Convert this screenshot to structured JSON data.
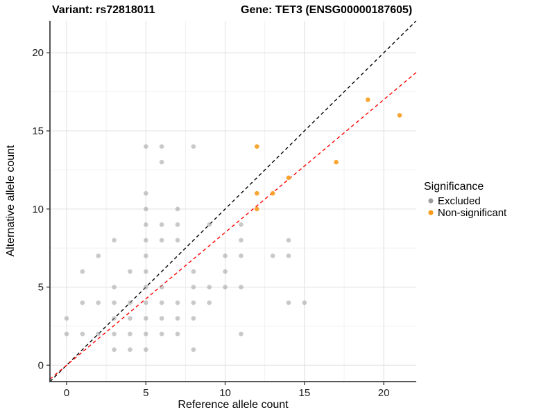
{
  "figure": {
    "title_left": "Variant: rs72818011",
    "title_right": "Gene: TET3 (ENSG00000187605)"
  },
  "axes": {
    "x": {
      "label": "Reference allele count",
      "major_ticks": [
        0,
        5,
        10,
        15,
        20
      ],
      "minor_ticks": [
        2.5,
        7.5,
        12.5,
        17.5
      ],
      "domain": [
        -1.05,
        22.05
      ]
    },
    "y": {
      "label": "Alternative allele count",
      "major_ticks": [
        0,
        5,
        10,
        15,
        20
      ],
      "minor_ticks": [
        2.5,
        7.5,
        12.5,
        17.5
      ],
      "domain": [
        -1.05,
        22.05
      ]
    }
  },
  "legend": {
    "title": "Significance",
    "items": [
      {
        "label": "Excluded",
        "color": "#9c9c9c"
      },
      {
        "label": "Non-significant",
        "color": "#F89C1C"
      }
    ]
  },
  "style": {
    "grid_major": "#e2e2e2",
    "grid_minor": "#f0f0f0",
    "axis_line": "#3f3f3f",
    "panel_bg": "#ffffff"
  },
  "chart_data": {
    "type": "scatter",
    "title": "Variant: rs72818011 / Gene: TET3 (ENSG00000187605)",
    "xlabel": "Reference allele count",
    "ylabel": "Alternative allele count",
    "xlim": [
      -1.05,
      22.05
    ],
    "ylim": [
      -1.05,
      22.05
    ],
    "grid": true,
    "legend_position": "right",
    "series": [
      {
        "name": "Excluded",
        "color": "#9c9c9c",
        "opacity": 0.55,
        "points": [
          [
            0,
            2
          ],
          [
            0,
            3
          ],
          [
            1,
            2
          ],
          [
            1,
            4
          ],
          [
            1,
            6
          ],
          [
            2,
            2
          ],
          [
            2,
            4
          ],
          [
            2,
            7
          ],
          [
            3,
            1
          ],
          [
            3,
            2
          ],
          [
            3,
            3
          ],
          [
            3,
            4
          ],
          [
            3,
            5
          ],
          [
            3,
            8
          ],
          [
            4,
            1
          ],
          [
            4,
            2
          ],
          [
            4,
            3
          ],
          [
            4,
            4
          ],
          [
            4,
            6
          ],
          [
            5,
            1
          ],
          [
            5,
            2
          ],
          [
            5,
            3
          ],
          [
            5,
            4
          ],
          [
            5,
            5
          ],
          [
            5,
            6
          ],
          [
            5,
            7
          ],
          [
            5,
            8
          ],
          [
            5,
            9
          ],
          [
            5,
            10
          ],
          [
            5,
            11
          ],
          [
            5,
            14
          ],
          [
            6,
            2
          ],
          [
            6,
            3
          ],
          [
            6,
            4
          ],
          [
            6,
            5
          ],
          [
            6,
            8
          ],
          [
            6,
            9
          ],
          [
            6,
            13
          ],
          [
            6,
            14
          ],
          [
            7,
            2
          ],
          [
            7,
            3
          ],
          [
            7,
            4
          ],
          [
            7,
            8
          ],
          [
            7,
            9
          ],
          [
            7,
            10
          ],
          [
            8,
            1
          ],
          [
            8,
            3
          ],
          [
            8,
            4
          ],
          [
            8,
            5
          ],
          [
            8,
            6
          ],
          [
            8,
            14
          ],
          [
            9,
            4
          ],
          [
            9,
            5
          ],
          [
            9,
            9
          ],
          [
            10,
            5
          ],
          [
            10,
            6
          ],
          [
            10,
            7
          ],
          [
            11,
            2
          ],
          [
            11,
            5
          ],
          [
            11,
            7
          ],
          [
            11,
            8
          ],
          [
            11,
            9
          ],
          [
            13,
            7
          ],
          [
            14,
            4
          ],
          [
            14,
            7
          ],
          [
            14,
            8
          ],
          [
            15,
            4
          ]
        ]
      },
      {
        "name": "Non-significant",
        "color": "#F89C1C",
        "opacity": 0.9,
        "points": [
          [
            12,
            10
          ],
          [
            12,
            11
          ],
          [
            12,
            14
          ],
          [
            13,
            11
          ],
          [
            14,
            12
          ],
          [
            17,
            13
          ],
          [
            19,
            17
          ],
          [
            21,
            16
          ]
        ]
      }
    ],
    "lines": [
      {
        "name": "identity-line",
        "slope": 1,
        "intercept": 0,
        "color": "#000000",
        "dash": "5,4"
      },
      {
        "name": "fit-line",
        "slope": 0.85,
        "intercept": 0,
        "color": "#ff0000",
        "dash": "5,4"
      }
    ]
  }
}
